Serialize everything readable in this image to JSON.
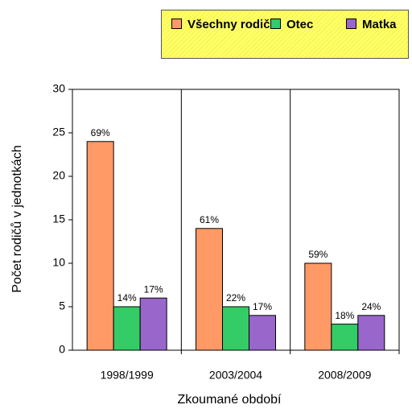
{
  "chart_data": {
    "type": "bar",
    "categories": [
      "1998/1999",
      "2003/2004",
      "2008/2009"
    ],
    "series": [
      {
        "name": "Všechny rodiče",
        "color": "#ff9966",
        "values": [
          24,
          14,
          10
        ],
        "shares": [
          "69%",
          "61%",
          "59%"
        ]
      },
      {
        "name": "Otec",
        "color": "#33cc66",
        "values": [
          5,
          5,
          3
        ],
        "shares": [
          "14%",
          "22%",
          "18%"
        ]
      },
      {
        "name": "Matka",
        "color": "#9966cc",
        "values": [
          6,
          4,
          4
        ],
        "shares": [
          "17%",
          "17%",
          "24%"
        ]
      }
    ],
    "ylim": [
      0,
      30
    ],
    "yticks": [
      0,
      5,
      10,
      15,
      20,
      25,
      30
    ],
    "ylabel": "Počet rodičů v jednotkách",
    "xlabel": "Zkoumané období",
    "grid": false,
    "legend": "top-right"
  }
}
